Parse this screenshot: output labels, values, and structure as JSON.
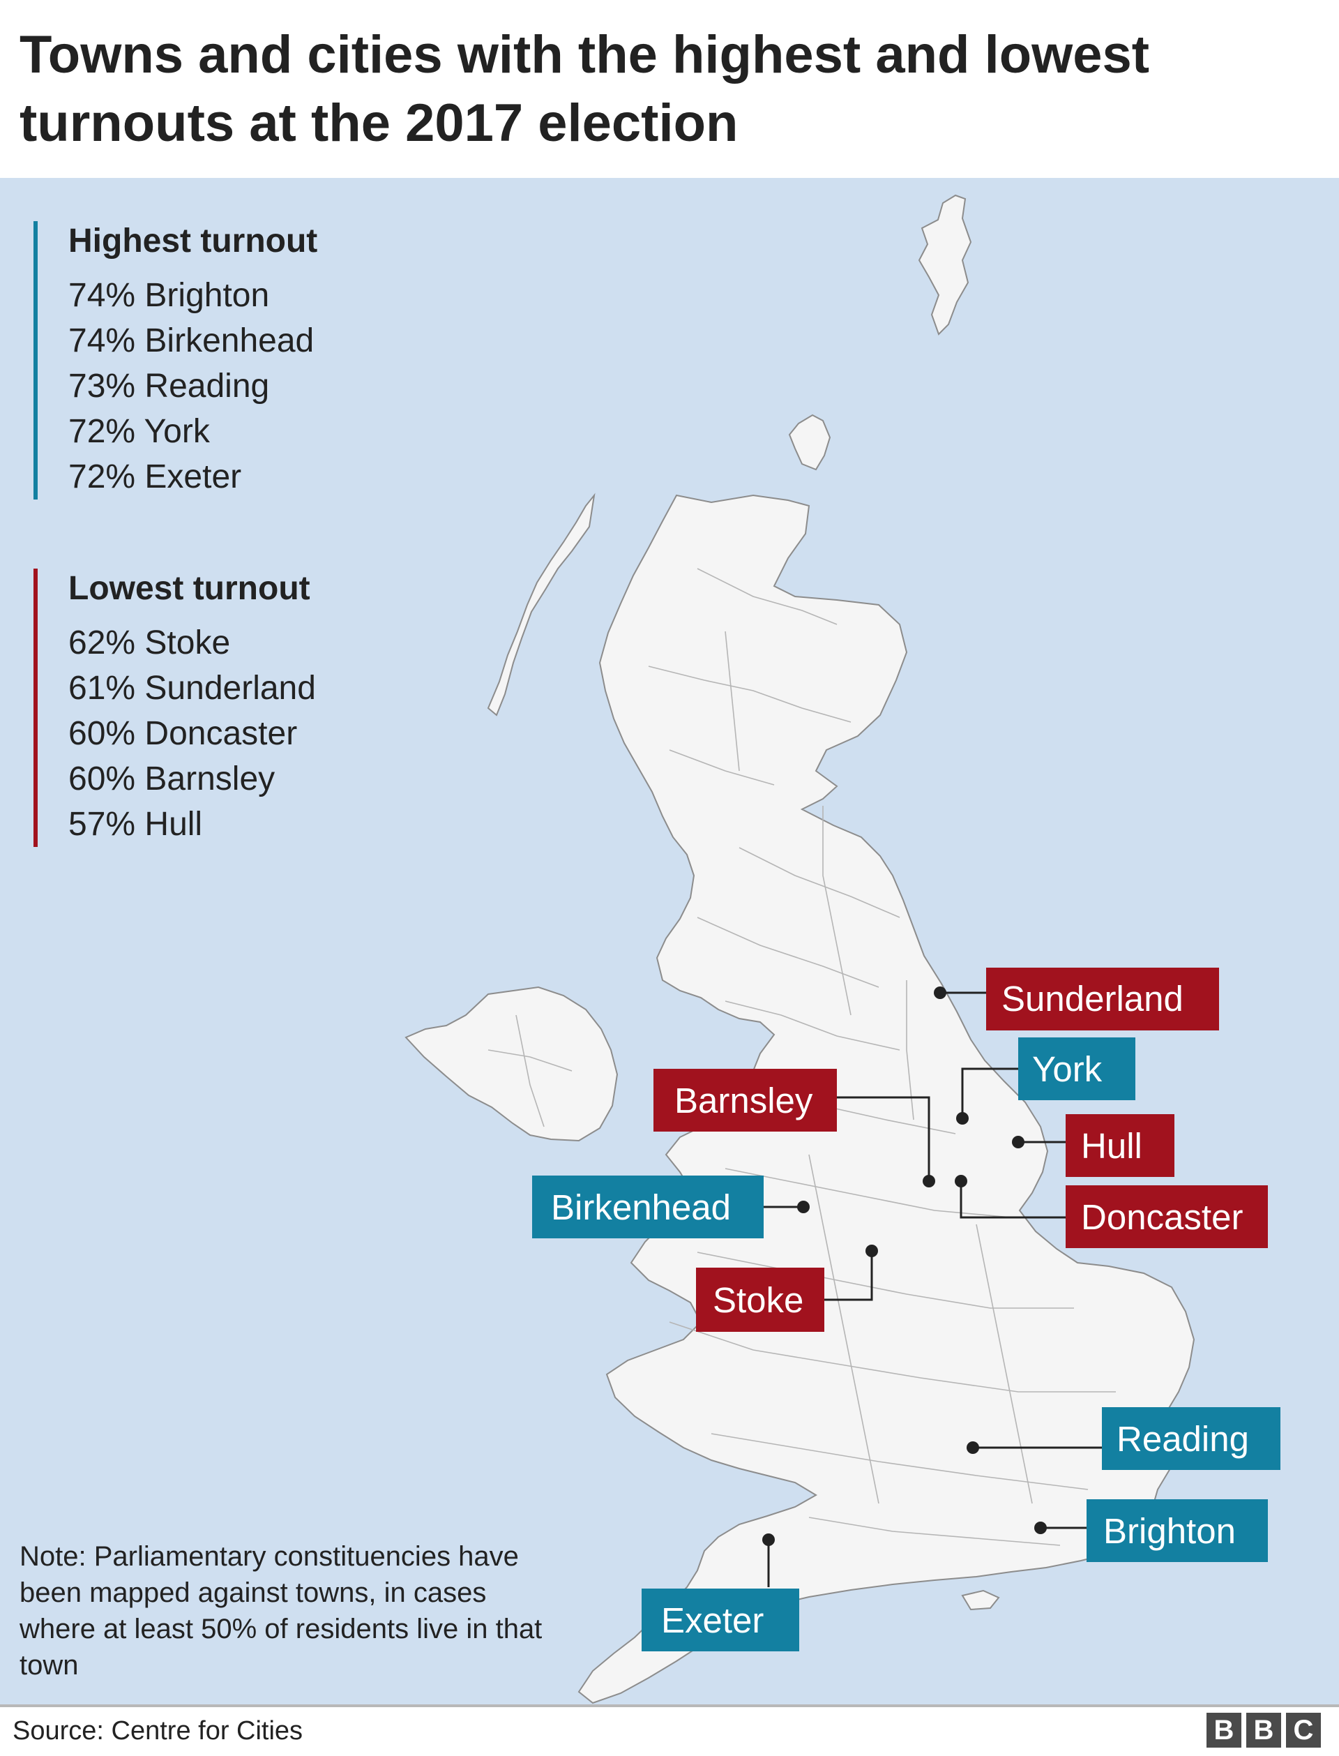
{
  "title": "Towns and cities with the highest and lowest turnouts at the 2017 election",
  "legend": {
    "highest": {
      "heading": "Highest turnout",
      "color": "#1380a1",
      "items": [
        "74% Brighton",
        "74% Birkenhead",
        "73% Reading",
        "72% York",
        "72% Exeter"
      ]
    },
    "lowest": {
      "heading": "Lowest turnout",
      "color": "#a1121e",
      "items": [
        "62% Stoke",
        "61% Sunderland",
        "60% Doncaster",
        "60% Barnsley",
        "57% Hull"
      ]
    }
  },
  "map_labels": {
    "sunderland": "Sunderland",
    "york": "York",
    "barnsley": "Barnsley",
    "hull": "Hull",
    "birkenhead": "Birkenhead",
    "doncaster": "Doncaster",
    "stoke": "Stoke",
    "reading": "Reading",
    "brighton": "Brighton",
    "exeter": "Exeter"
  },
  "note": "Note: Parliamentary constituencies have been mapped against towns, in cases where at least 50% of residents live in that town",
  "source": "Source: Centre for Cities",
  "logo": [
    "B",
    "B",
    "C"
  ],
  "colors": {
    "sea": "#cfdff0",
    "land": "#f5f5f5",
    "border": "#8c8c8c",
    "highest": "#1380a1",
    "lowest": "#a1121e"
  }
}
